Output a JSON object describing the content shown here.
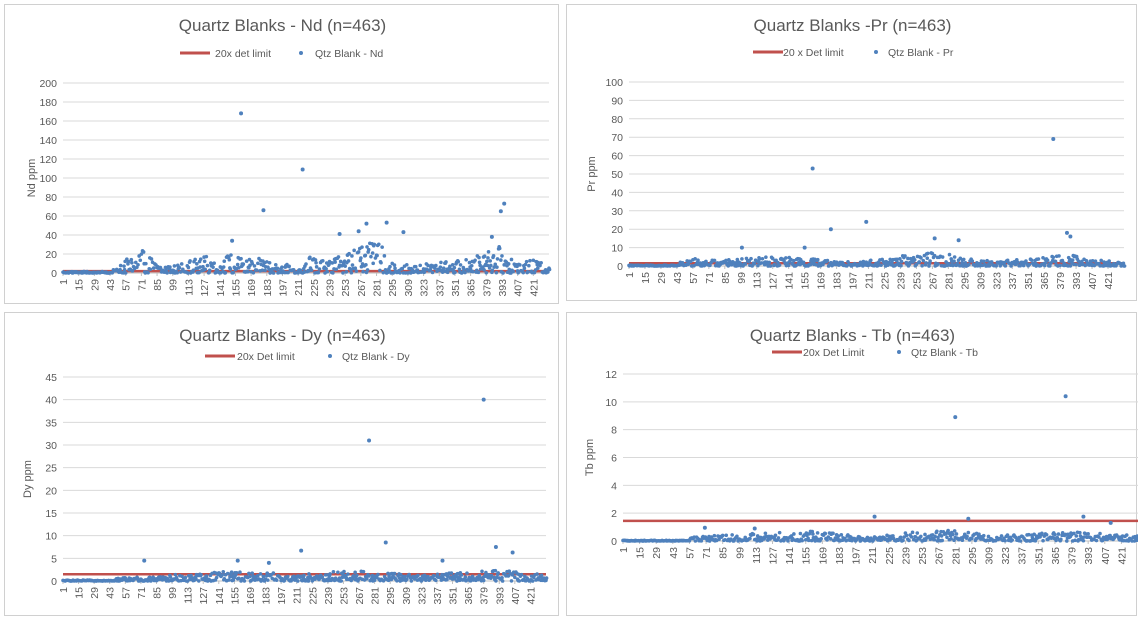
{
  "colors": {
    "limit": "#c0504d",
    "points": "#4f81bd",
    "text": "#595959",
    "grid": "#d9d9d9"
  },
  "chart_data": [
    {
      "id": "nd",
      "type": "scatter",
      "title": "Quartz Blanks - Nd (n=463)",
      "xlabel": "",
      "ylabel": "Nd ppm",
      "ylim": [
        0,
        200
      ],
      "yticks": [
        0,
        20,
        40,
        60,
        80,
        100,
        120,
        140,
        160,
        180,
        200
      ],
      "xticks": [
        1,
        15,
        29,
        43,
        57,
        71,
        85,
        99,
        113,
        127,
        141,
        155,
        169,
        183,
        197,
        211,
        225,
        239,
        253,
        267,
        281,
        295,
        309,
        323,
        337,
        351,
        365,
        379,
        393,
        407,
        421
      ],
      "n": 463,
      "grid": true,
      "legend_position": "top",
      "series": [
        {
          "name": "20x det limit",
          "kind": "line",
          "value": 2
        },
        {
          "name": "Qtz Blank - Nd",
          "kind": "markers",
          "outliers": [
            [
              160,
              168
            ],
            [
              215,
              109
            ],
            [
              180,
              66
            ],
            [
              392,
              65
            ],
            [
              395,
              73
            ],
            [
              290,
              53
            ],
            [
              272,
              52
            ],
            [
              265,
              44
            ],
            [
              248,
              41
            ],
            [
              384,
              38
            ],
            [
              152,
              34
            ],
            [
              305,
              43
            ]
          ],
          "baseline": [
            [
              1,
              1.5
            ],
            [
              45,
              1.5
            ],
            [
              46,
              6
            ],
            [
              60,
              16
            ],
            [
              70,
              28
            ],
            [
              90,
              6
            ],
            [
              100,
              8
            ],
            [
              110,
              12
            ],
            [
              120,
              15
            ],
            [
              130,
              18
            ],
            [
              140,
              16
            ],
            [
              150,
              20
            ],
            [
              160,
              16
            ],
            [
              170,
              14
            ],
            [
              180,
              16
            ],
            [
              190,
              12
            ],
            [
              200,
              10
            ],
            [
              210,
              3
            ],
            [
              215,
              6
            ],
            [
              220,
              18
            ],
            [
              240,
              14
            ],
            [
              250,
              20
            ],
            [
              260,
              28
            ],
            [
              270,
              32
            ],
            [
              285,
              30
            ],
            [
              295,
              18
            ],
            [
              300,
              8
            ],
            [
              320,
              10
            ],
            [
              340,
              12
            ],
            [
              360,
              14
            ],
            [
              375,
              20
            ],
            [
              390,
              28
            ],
            [
              400,
              18
            ],
            [
              410,
              10
            ],
            [
              420,
              14
            ],
            [
              430,
              10
            ]
          ]
        }
      ]
    },
    {
      "id": "pr",
      "type": "scatter",
      "title": "Quartz Blanks -Pr (n=463)",
      "xlabel": "",
      "ylabel": "Pr ppm",
      "ylim": [
        0,
        100
      ],
      "yticks": [
        0,
        10,
        20,
        30,
        40,
        50,
        60,
        70,
        80,
        90,
        100
      ],
      "xticks": [
        1,
        15,
        29,
        43,
        57,
        71,
        85,
        99,
        113,
        127,
        141,
        155,
        169,
        183,
        197,
        211,
        225,
        239,
        253,
        267,
        281,
        295,
        309,
        323,
        337,
        351,
        365,
        379,
        393,
        407,
        421
      ],
      "n": 463,
      "grid": true,
      "legend_position": "top",
      "series": [
        {
          "name": "20 x Det limit",
          "kind": "line",
          "value": 1.5
        },
        {
          "name": "Qtz Blank - Pr",
          "kind": "markers",
          "outliers": [
            [
              162,
              53
            ],
            [
              373,
              69
            ],
            [
              209,
              24
            ],
            [
              178,
              20
            ],
            [
              385,
              18
            ],
            [
              388,
              16
            ],
            [
              269,
              15
            ],
            [
              290,
              14
            ],
            [
              100,
              10
            ],
            [
              155,
              10
            ]
          ],
          "baseline": [
            [
              1,
              0.5
            ],
            [
              45,
              0.5
            ],
            [
              46,
              3
            ],
            [
              60,
              4
            ],
            [
              80,
              3
            ],
            [
              100,
              4
            ],
            [
              120,
              5
            ],
            [
              140,
              5
            ],
            [
              160,
              4
            ],
            [
              180,
              3
            ],
            [
              200,
              2
            ],
            [
              210,
              3
            ],
            [
              225,
              4
            ],
            [
              245,
              6
            ],
            [
              260,
              7
            ],
            [
              275,
              8
            ],
            [
              290,
              5
            ],
            [
              310,
              3
            ],
            [
              330,
              3
            ],
            [
              350,
              4
            ],
            [
              370,
              5
            ],
            [
              385,
              7
            ],
            [
              400,
              4
            ],
            [
              420,
              3
            ],
            [
              430,
              2
            ]
          ]
        }
      ]
    },
    {
      "id": "dy",
      "type": "scatter",
      "title": "Quartz Blanks - Dy (n=463)",
      "xlabel": "",
      "ylabel": "Dy ppm",
      "ylim": [
        0,
        45
      ],
      "yticks": [
        0,
        5,
        10,
        15,
        20,
        25,
        30,
        35,
        40,
        45
      ],
      "xticks": [
        1,
        15,
        29,
        43,
        57,
        71,
        85,
        99,
        113,
        127,
        141,
        155,
        169,
        183,
        197,
        211,
        225,
        239,
        253,
        267,
        281,
        295,
        309,
        323,
        337,
        351,
        365,
        379,
        393,
        407,
        421
      ],
      "n": 463,
      "grid": true,
      "legend_position": "top",
      "series": [
        {
          "name": "20x Det limit",
          "kind": "line",
          "value": 1.5
        },
        {
          "name": "Qtz Blank - Dy",
          "kind": "markers",
          "outliers": [
            [
              379,
              40
            ],
            [
              276,
              31
            ],
            [
              291,
              8.5
            ],
            [
              390,
              7.5
            ],
            [
              215,
              6.7
            ],
            [
              405,
              6.3
            ],
            [
              74,
              4.5
            ],
            [
              158,
              4.5
            ],
            [
              342,
              4.5
            ],
            [
              186,
              4
            ]
          ],
          "baseline": [
            [
              1,
              0.2
            ],
            [
              45,
              0.2
            ],
            [
              50,
              0.6
            ],
            [
              70,
              1
            ],
            [
              90,
              1
            ],
            [
              110,
              2
            ],
            [
              130,
              2
            ],
            [
              150,
              2.2
            ],
            [
              170,
              2
            ],
            [
              190,
              1.8
            ],
            [
              210,
              1
            ],
            [
              230,
              2
            ],
            [
              250,
              2.2
            ],
            [
              270,
              2.2
            ],
            [
              290,
              2
            ],
            [
              310,
              1.5
            ],
            [
              330,
              1.5
            ],
            [
              350,
              1.8
            ],
            [
              370,
              2
            ],
            [
              390,
              2.5
            ],
            [
              410,
              2
            ],
            [
              430,
              1.5
            ]
          ]
        }
      ]
    },
    {
      "id": "tb",
      "type": "scatter",
      "title": "Quartz Blanks - Tb (n=463)",
      "xlabel": "",
      "ylabel": "Tb ppm",
      "ylim": [
        0,
        12
      ],
      "yticks": [
        0,
        2,
        4,
        6,
        8,
        10,
        12
      ],
      "xticks": [
        1,
        15,
        29,
        43,
        57,
        71,
        85,
        99,
        113,
        127,
        141,
        155,
        169,
        183,
        197,
        211,
        225,
        239,
        253,
        267,
        281,
        295,
        309,
        323,
        337,
        351,
        365,
        379,
        393,
        407,
        421
      ],
      "n": 463,
      "grid": true,
      "legend_position": "top",
      "series": [
        {
          "name": "20x Det Limit",
          "kind": "line",
          "value": 1.45
        },
        {
          "name": "Qtz Blank - Tb",
          "kind": "markers",
          "outliers": [
            [
              374,
              10.4
            ],
            [
              281,
              8.9
            ],
            [
              213,
              1.75
            ],
            [
              389,
              1.75
            ],
            [
              292,
              1.6
            ],
            [
              412,
              1.3
            ],
            [
              70,
              0.95
            ],
            [
              112,
              0.9
            ]
          ],
          "baseline": [
            [
              1,
              0.05
            ],
            [
              55,
              0.05
            ],
            [
              60,
              0.3
            ],
            [
              80,
              0.4
            ],
            [
              100,
              0.5
            ],
            [
              120,
              0.6
            ],
            [
              140,
              0.6
            ],
            [
              160,
              0.7
            ],
            [
              180,
              0.6
            ],
            [
              200,
              0.3
            ],
            [
              215,
              0.4
            ],
            [
              235,
              0.6
            ],
            [
              255,
              0.7
            ],
            [
              275,
              0.8
            ],
            [
              295,
              0.6
            ],
            [
              315,
              0.4
            ],
            [
              335,
              0.5
            ],
            [
              355,
              0.6
            ],
            [
              375,
              0.7
            ],
            [
              395,
              0.6
            ],
            [
              415,
              0.5
            ],
            [
              430,
              0.4
            ]
          ]
        }
      ]
    }
  ]
}
